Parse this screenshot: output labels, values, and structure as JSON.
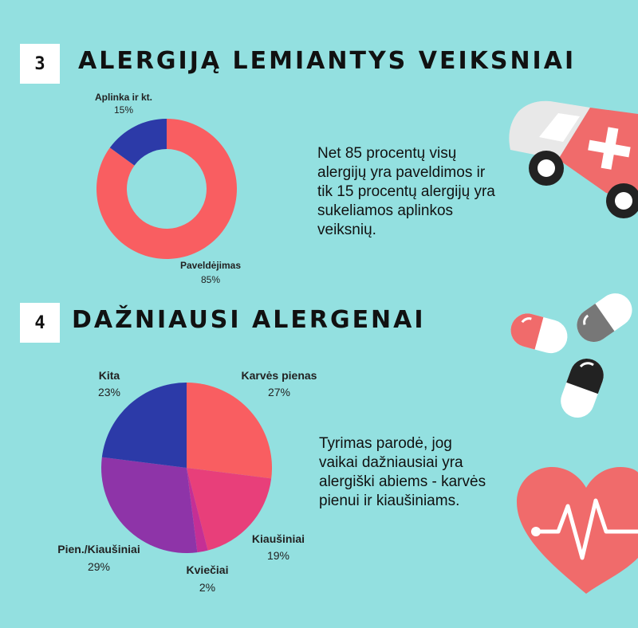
{
  "sections": [
    {
      "number": "3",
      "title": "ALERGIJĄ LEMIANTYS VEIKSNIAI",
      "description": "Net 85 procentų visų alergijų yra paveldimos ir tik 15 procentų alergijų yra sukeliamos aplinkos veiksnių."
    },
    {
      "number": "4",
      "title": "DAŽNIAUSI ALERGENAI",
      "description": "Tyrimas parodė, jog vaikai dažniausiai yra alergiški abiems - karvės pienui ir kiaušiniams."
    }
  ],
  "chart_data": [
    {
      "type": "pie",
      "variant": "donut",
      "slices": [
        {
          "label": "Paveldėjimas",
          "value": 85,
          "value_label": "85%",
          "color": "#f95e61"
        },
        {
          "label": "Aplinka ir kt.",
          "value": 15,
          "value_label": "15%",
          "color": "#2c3aa8"
        }
      ]
    },
    {
      "type": "pie",
      "slices": [
        {
          "label": "Karvės pienas",
          "value": 27,
          "value_label": "27%",
          "color": "#f95e61"
        },
        {
          "label": "Kiaušiniai",
          "value": 19,
          "value_label": "19%",
          "color": "#e83f7a"
        },
        {
          "label": "Kviečiai",
          "value": 2,
          "value_label": "2%",
          "color": "#c52f95"
        },
        {
          "label": "Pien./Kiaušiniai",
          "value": 29,
          "value_label": "29%",
          "color": "#8e34a8"
        },
        {
          "label": "Kita",
          "value": 23,
          "value_label": "23%",
          "color": "#2c3aa8"
        }
      ]
    }
  ],
  "icons": [
    "ambulance-icon",
    "pills-icon",
    "heart-pulse-icon"
  ]
}
